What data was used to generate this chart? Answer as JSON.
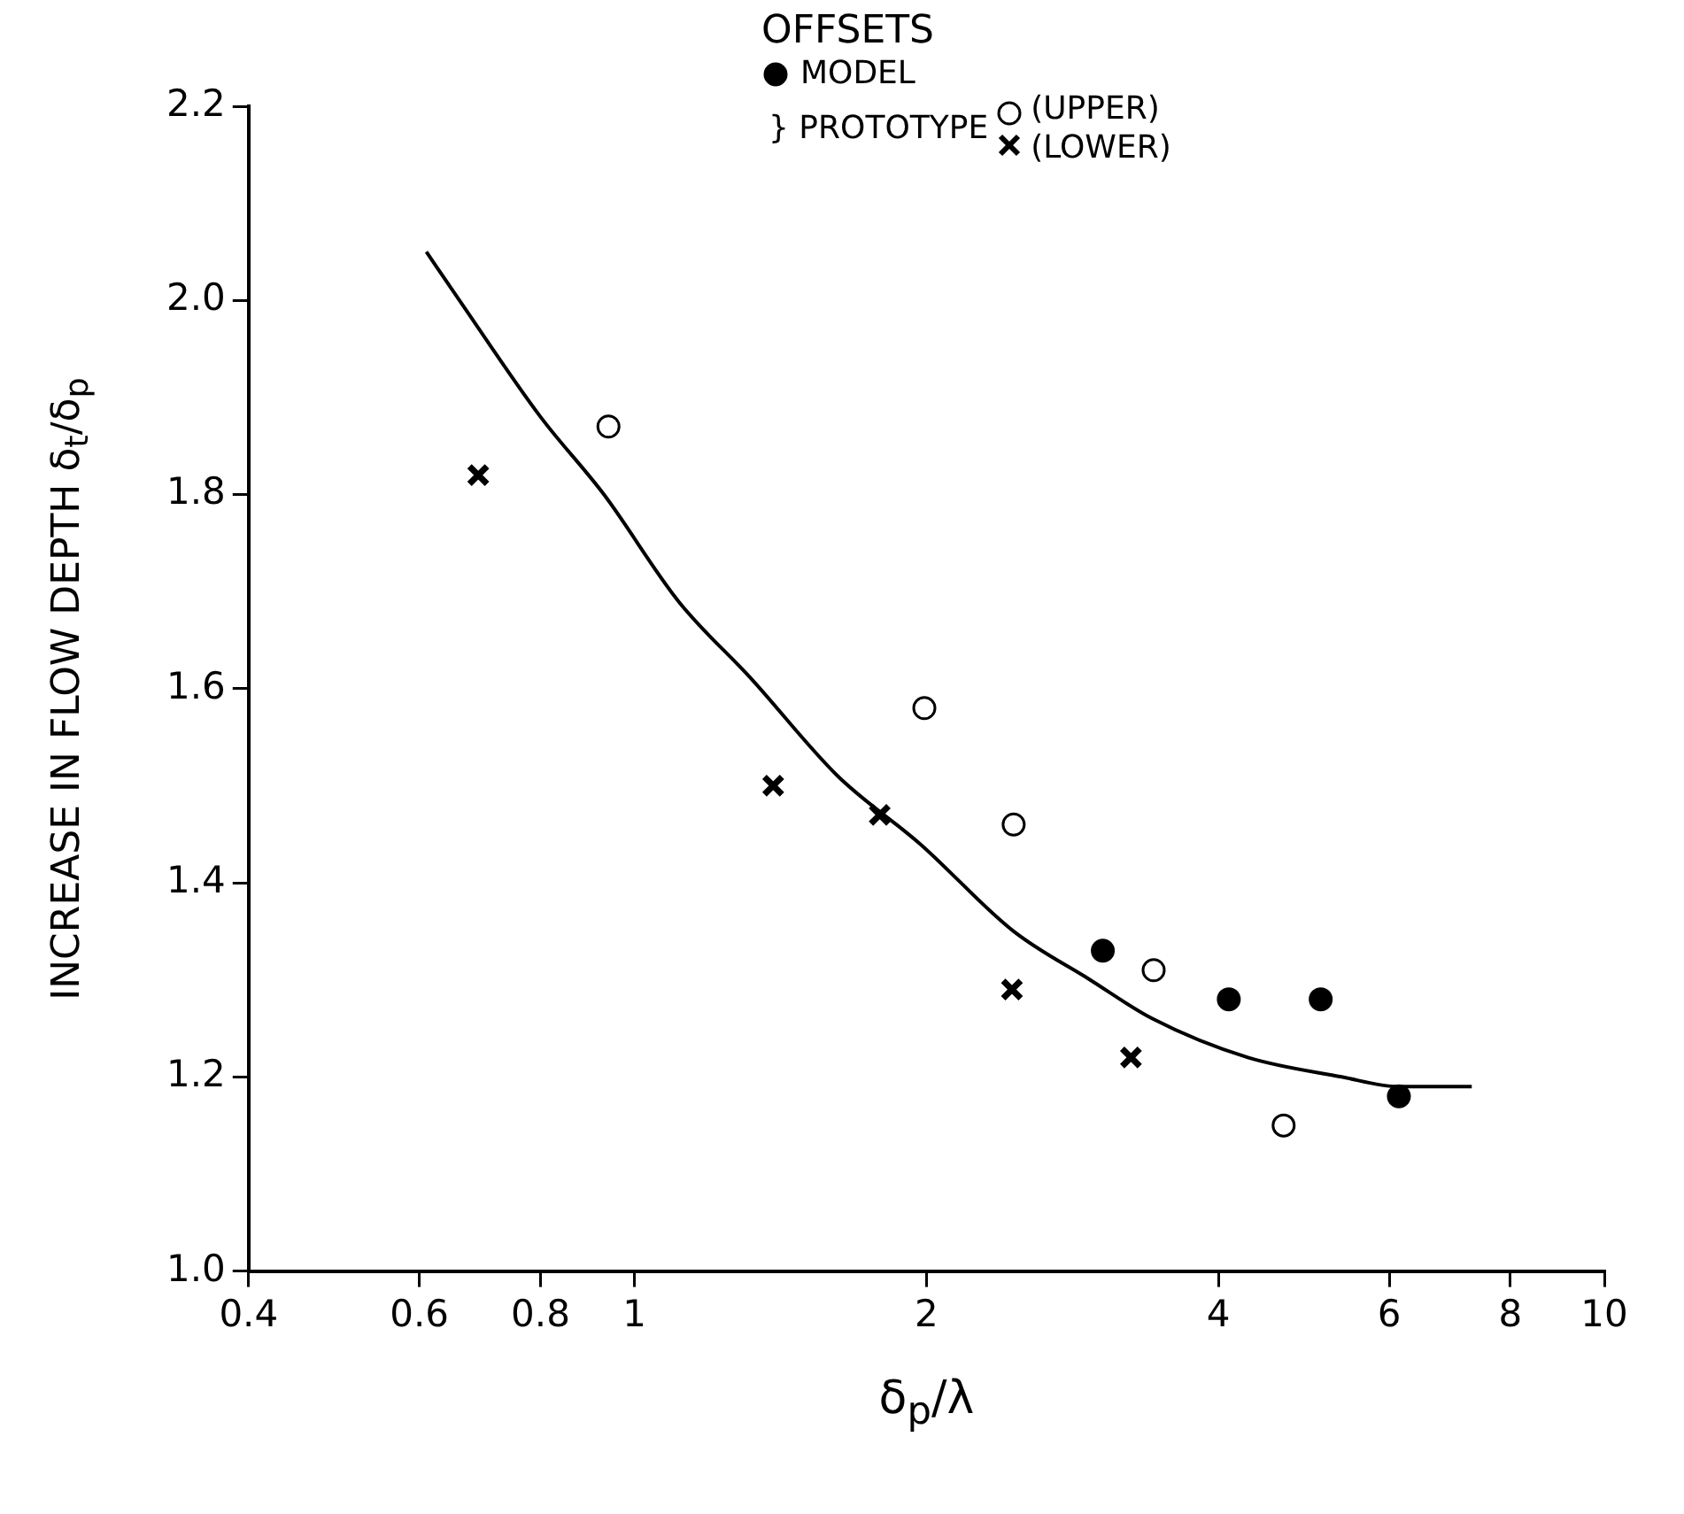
{
  "chart_data": {
    "type": "scatter",
    "legend_title": "OFFSETS",
    "ylabel": "INCREASE IN FLOW DEPTH δ$_{t}$/δ$_{p}$",
    "xlabel": "δ$_{p}$/λ",
    "log": "x",
    "xlim": [
      0.4,
      10
    ],
    "ylim": [
      1.0,
      2.2
    ],
    "xticks": [
      {
        "value": 0.4,
        "label": "0.4"
      },
      {
        "value": 0.6,
        "label": "0.6"
      },
      {
        "value": 0.8,
        "label": "0.8"
      },
      1,
      2,
      4,
      6,
      8,
      10
    ],
    "yticks": [
      {
        "value": 1.0,
        "label": "1.0"
      },
      1.2,
      1.4,
      1.6,
      1.8,
      {
        "value": 2.0,
        "label": "2.0"
      },
      2.2
    ],
    "grid": false,
    "legend": "top",
    "annotations": [
      "} PROTOTYPE"
    ],
    "series": [
      {
        "name": "MODEL",
        "color": "#000000",
        "marker": "circle",
        "x": [
          3.04,
          4.1,
          5.1,
          6.14
        ],
        "values": [
          1.33,
          1.28,
          1.28,
          1.18
        ]
      },
      {
        "name": "(UPPER)",
        "color": "#ffffff",
        "marker": "circle",
        "x": [
          0.94,
          1.99,
          2.46,
          3.43,
          4.67
        ],
        "values": [
          1.87,
          1.58,
          1.46,
          1.31,
          1.15
        ]
      },
      {
        "name": "(LOWER)",
        "color": "#000000",
        "marker": "cross",
        "x": [
          0.69,
          1.39,
          1.79,
          2.45,
          3.25
        ],
        "values": [
          1.82,
          1.5,
          1.47,
          1.29,
          1.22
        ]
      },
      {
        "type": "line",
        "color": "#000000",
        "marker": "none",
        "line_style": "solid",
        "x": [
          0.61,
          0.66,
          0.8,
          0.93,
          1.11,
          1.32,
          1.62,
          1.97,
          2.46,
          2.95,
          3.42,
          4.29,
          5.36,
          6.14,
          7.3
        ],
        "values": [
          2.05,
          2.0,
          1.88,
          1.8,
          1.69,
          1.61,
          1.51,
          1.44,
          1.35,
          1.3,
          1.26,
          1.22,
          1.2,
          1.19,
          1.19
        ]
      }
    ]
  }
}
